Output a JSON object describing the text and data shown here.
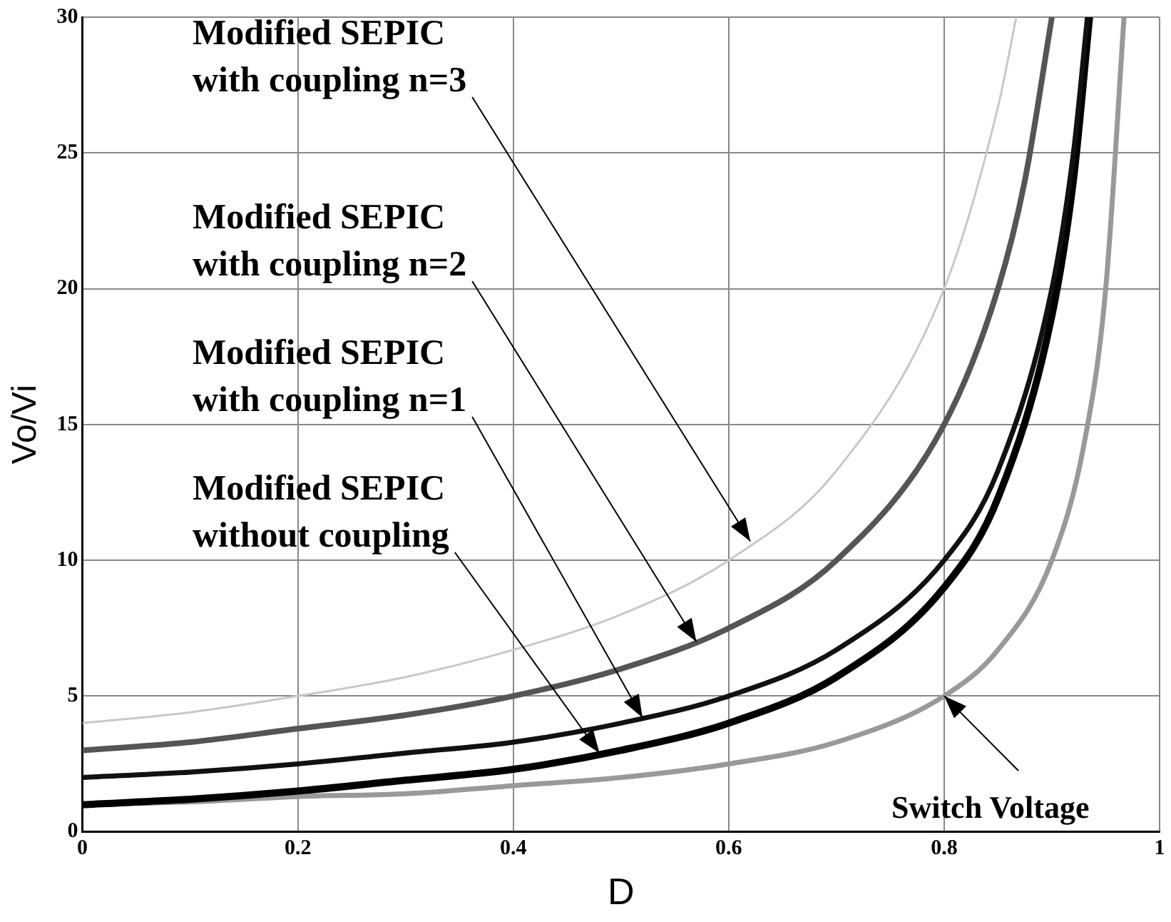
{
  "chart_data": {
    "type": "line",
    "xlabel": "D",
    "ylabel": "Vo/Vi",
    "xlim": [
      0,
      1
    ],
    "xticks": [
      0,
      0.2,
      0.4,
      0.6,
      0.8,
      1
    ],
    "ylim": [
      0,
      30
    ],
    "yticks": [
      0,
      5,
      10,
      15,
      20,
      25,
      30
    ],
    "grid": true,
    "legend": false,
    "marker": "none",
    "series": [
      {
        "color": "#c8c8c8",
        "x": [
          0,
          0.1,
          0.2,
          0.3,
          0.4,
          0.5,
          0.6,
          0.7,
          0.8,
          0.85,
          0.867
        ],
        "values": [
          4,
          4.4,
          5,
          5.7,
          6.7,
          8,
          10,
          13.3,
          20,
          26.7,
          30
        ]
      },
      {
        "color": "#555555",
        "x": [
          0,
          0.1,
          0.2,
          0.3,
          0.4,
          0.5,
          0.6,
          0.7,
          0.8,
          0.85,
          0.875,
          0.9
        ],
        "values": [
          3,
          3.3,
          3.8,
          4.3,
          5,
          6,
          7.5,
          10,
          15,
          20,
          24,
          30
        ]
      },
      {
        "color": "#111111",
        "x": [
          0,
          0.1,
          0.2,
          0.3,
          0.4,
          0.5,
          0.6,
          0.7,
          0.8,
          0.85,
          0.9,
          0.92,
          0.933
        ],
        "values": [
          2,
          2.2,
          2.5,
          2.9,
          3.3,
          4,
          5,
          6.7,
          10,
          13.3,
          20,
          25,
          30
        ]
      },
      {
        "color": "#000000",
        "x": [
          0,
          0.1,
          0.2,
          0.3,
          0.4,
          0.5,
          0.6,
          0.7,
          0.8,
          0.85,
          0.9,
          0.92,
          0.935
        ],
        "values": [
          1,
          1.2,
          1.5,
          1.9,
          2.3,
          3,
          4,
          5.7,
          9,
          12.3,
          19,
          24,
          30
        ]
      },
      {
        "color": "#999999",
        "x": [
          0,
          0.1,
          0.2,
          0.3,
          0.4,
          0.5,
          0.6,
          0.7,
          0.8,
          0.85,
          0.9,
          0.93,
          0.95,
          0.967
        ],
        "values": [
          1,
          1.1,
          1.3,
          1.4,
          1.7,
          2,
          2.5,
          3.3,
          5,
          6.7,
          10,
          14.3,
          20,
          30
        ]
      }
    ],
    "annotations": [
      {
        "text": "Modified SEPIC\nwith coupling n=3",
        "x": 0.62,
        "y": 10.7
      },
      {
        "text": "Modified SEPIC\nwith coupling n=2",
        "x": 0.57,
        "y": 7.0
      },
      {
        "text": "Modified SEPIC\nwith coupling n=1",
        "x": 0.52,
        "y": 4.2
      },
      {
        "text": "Modified SEPIC\nwithout coupling",
        "x": 0.48,
        "y": 2.9
      },
      {
        "text": "Switch Voltage",
        "x": 0.8,
        "y": 5
      }
    ]
  }
}
